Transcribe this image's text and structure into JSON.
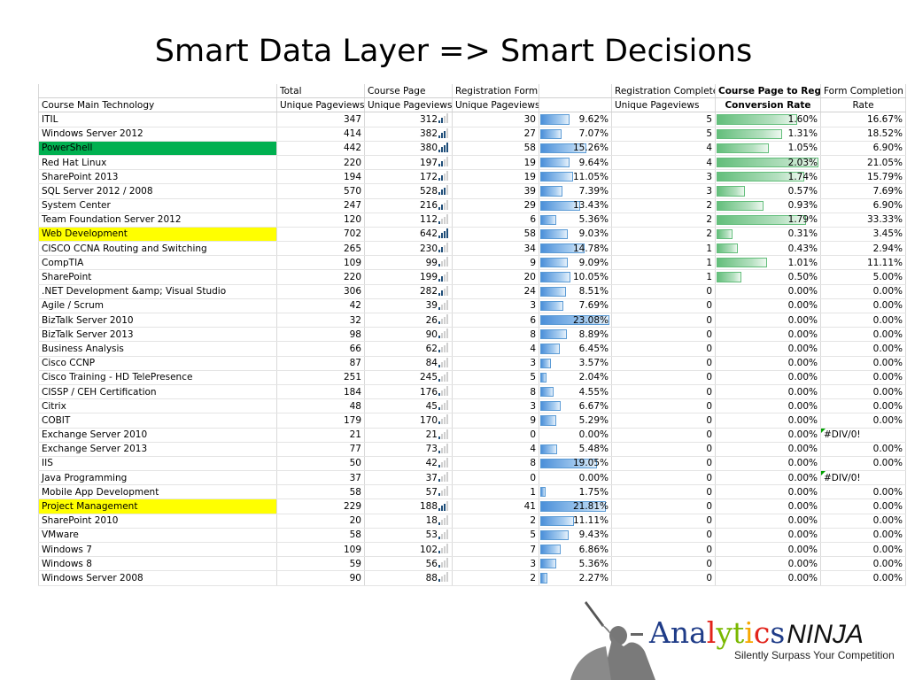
{
  "slide": {
    "title": "Smart Data Layer => Smart Decisions"
  },
  "table": {
    "header_row1": [
      "",
      "Total",
      "Course Page",
      "Registration Form",
      "",
      "Registration Complete",
      "Course Page to Reg",
      "Form Completion"
    ],
    "header_row2": [
      "Course Main Technology",
      "Unique Pageviews",
      "Unique Pageviews",
      "Unique Pageviews",
      "",
      "Unique Pageviews",
      "Conversion Rate",
      "Rate"
    ],
    "rows": [
      {
        "tech": "ITIL",
        "total": "347",
        "course": "312",
        "sig": 2,
        "reg": "30",
        "pct": "9.62%",
        "pv": 9.62,
        "complete": "5",
        "conv": "1.60%",
        "cv": 1.6,
        "form": "16.67%"
      },
      {
        "tech": "Windows Server 2012",
        "total": "414",
        "course": "382",
        "sig": 3,
        "reg": "27",
        "pct": "7.07%",
        "pv": 7.07,
        "complete": "5",
        "conv": "1.31%",
        "cv": 1.31,
        "form": "18.52%"
      },
      {
        "tech": "PowerShell",
        "total": "442",
        "course": "380",
        "sig": 4,
        "reg": "58",
        "pct": "15.26%",
        "pv": 15.26,
        "complete": "4",
        "conv": "1.05%",
        "cv": 1.05,
        "form": "6.90%",
        "hl": "green"
      },
      {
        "tech": "Red Hat Linux",
        "total": "220",
        "course": "197",
        "sig": 2,
        "reg": "19",
        "pct": "9.64%",
        "pv": 9.64,
        "complete": "4",
        "conv": "2.03%",
        "cv": 2.03,
        "form": "21.05%"
      },
      {
        "tech": "SharePoint 2013",
        "total": "194",
        "course": "172",
        "sig": 2,
        "reg": "19",
        "pct": "11.05%",
        "pv": 11.05,
        "complete": "3",
        "conv": "1.74%",
        "cv": 1.74,
        "form": "15.79%"
      },
      {
        "tech": "SQL Server 2012 / 2008",
        "total": "570",
        "course": "528",
        "sig": 3,
        "reg": "39",
        "pct": "7.39%",
        "pv": 7.39,
        "complete": "3",
        "conv": "0.57%",
        "cv": 0.57,
        "form": "7.69%"
      },
      {
        "tech": "System Center",
        "total": "247",
        "course": "216",
        "sig": 2,
        "reg": "29",
        "pct": "13.43%",
        "pv": 13.43,
        "complete": "2",
        "conv": "0.93%",
        "cv": 0.93,
        "form": "6.90%"
      },
      {
        "tech": "Team Foundation Server 2012",
        "total": "120",
        "course": "112",
        "sig": 1,
        "reg": "6",
        "pct": "5.36%",
        "pv": 5.36,
        "complete": "2",
        "conv": "1.79%",
        "cv": 1.79,
        "form": "33.33%"
      },
      {
        "tech": "Web Development",
        "total": "702",
        "course": "642",
        "sig": 4,
        "reg": "58",
        "pct": "9.03%",
        "pv": 9.03,
        "complete": "2",
        "conv": "0.31%",
        "cv": 0.31,
        "form": "3.45%",
        "hl": "yellow"
      },
      {
        "tech": "CISCO CCNA Routing and Switching",
        "total": "265",
        "course": "230",
        "sig": 2,
        "reg": "34",
        "pct": "14.78%",
        "pv": 14.78,
        "complete": "1",
        "conv": "0.43%",
        "cv": 0.43,
        "form": "2.94%"
      },
      {
        "tech": "CompTIA",
        "total": "109",
        "course": "99",
        "sig": 1,
        "reg": "9",
        "pct": "9.09%",
        "pv": 9.09,
        "complete": "1",
        "conv": "1.01%",
        "cv": 1.01,
        "form": "11.11%"
      },
      {
        "tech": "SharePoint",
        "total": "220",
        "course": "199",
        "sig": 2,
        "reg": "20",
        "pct": "10.05%",
        "pv": 10.05,
        "complete": "1",
        "conv": "0.50%",
        "cv": 0.5,
        "form": "5.00%"
      },
      {
        "tech": ".NET Development &amp; Visual Studio",
        "total": "306",
        "course": "282",
        "sig": 2,
        "reg": "24",
        "pct": "8.51%",
        "pv": 8.51,
        "complete": "0",
        "conv": "0.00%",
        "cv": 0,
        "form": "0.00%"
      },
      {
        "tech": "Agile / Scrum",
        "total": "42",
        "course": "39",
        "sig": 1,
        "reg": "3",
        "pct": "7.69%",
        "pv": 7.69,
        "complete": "0",
        "conv": "0.00%",
        "cv": 0,
        "form": "0.00%"
      },
      {
        "tech": "BizTalk Server 2010",
        "total": "32",
        "course": "26",
        "sig": 1,
        "reg": "6",
        "pct": "23.08%",
        "pv": 23.08,
        "complete": "0",
        "conv": "0.00%",
        "cv": 0,
        "form": "0.00%"
      },
      {
        "tech": "BizTalk Server 2013",
        "total": "98",
        "course": "90",
        "sig": 1,
        "reg": "8",
        "pct": "8.89%",
        "pv": 8.89,
        "complete": "0",
        "conv": "0.00%",
        "cv": 0,
        "form": "0.00%"
      },
      {
        "tech": "Business Analysis",
        "total": "66",
        "course": "62",
        "sig": 1,
        "reg": "4",
        "pct": "6.45%",
        "pv": 6.45,
        "complete": "0",
        "conv": "0.00%",
        "cv": 0,
        "form": "0.00%"
      },
      {
        "tech": "Cisco CCNP",
        "total": "87",
        "course": "84",
        "sig": 1,
        "reg": "3",
        "pct": "3.57%",
        "pv": 3.57,
        "complete": "0",
        "conv": "0.00%",
        "cv": 0,
        "form": "0.00%"
      },
      {
        "tech": "Cisco Training - HD TelePresence",
        "total": "251",
        "course": "245",
        "sig": 1,
        "reg": "5",
        "pct": "2.04%",
        "pv": 2.04,
        "complete": "0",
        "conv": "0.00%",
        "cv": 0,
        "form": "0.00%"
      },
      {
        "tech": "CISSP / CEH Certification",
        "total": "184",
        "course": "176",
        "sig": 1,
        "reg": "8",
        "pct": "4.55%",
        "pv": 4.55,
        "complete": "0",
        "conv": "0.00%",
        "cv": 0,
        "form": "0.00%"
      },
      {
        "tech": "Citrix",
        "total": "48",
        "course": "45",
        "sig": 1,
        "reg": "3",
        "pct": "6.67%",
        "pv": 6.67,
        "complete": "0",
        "conv": "0.00%",
        "cv": 0,
        "form": "0.00%"
      },
      {
        "tech": "COBIT",
        "total": "179",
        "course": "170",
        "sig": 1,
        "reg": "9",
        "pct": "5.29%",
        "pv": 5.29,
        "complete": "0",
        "conv": "0.00%",
        "cv": 0,
        "form": "0.00%"
      },
      {
        "tech": "Exchange Server 2010",
        "total": "21",
        "course": "21",
        "sig": 1,
        "reg": "0",
        "pct": "0.00%",
        "pv": 0,
        "complete": "0",
        "conv": "0.00%",
        "cv": 0,
        "form": "#DIV/0!",
        "err": true
      },
      {
        "tech": "Exchange Server 2013",
        "total": "77",
        "course": "73",
        "sig": 1,
        "reg": "4",
        "pct": "5.48%",
        "pv": 5.48,
        "complete": "0",
        "conv": "0.00%",
        "cv": 0,
        "form": "0.00%"
      },
      {
        "tech": "IIS",
        "total": "50",
        "course": "42",
        "sig": 1,
        "reg": "8",
        "pct": "19.05%",
        "pv": 19.05,
        "complete": "0",
        "conv": "0.00%",
        "cv": 0,
        "form": "0.00%"
      },
      {
        "tech": "Java Programming",
        "total": "37",
        "course": "37",
        "sig": 1,
        "reg": "0",
        "pct": "0.00%",
        "pv": 0,
        "complete": "0",
        "conv": "0.00%",
        "cv": 0,
        "form": "#DIV/0!",
        "err": true
      },
      {
        "tech": "Mobile App Development",
        "total": "58",
        "course": "57",
        "sig": 1,
        "reg": "1",
        "pct": "1.75%",
        "pv": 1.75,
        "complete": "0",
        "conv": "0.00%",
        "cv": 0,
        "form": "0.00%"
      },
      {
        "tech": "Project Management",
        "total": "229",
        "course": "188",
        "sig": 3,
        "reg": "41",
        "pct": "21.81%",
        "pv": 21.81,
        "complete": "0",
        "conv": "0.00%",
        "cv": 0,
        "form": "0.00%",
        "hl": "yellow"
      },
      {
        "tech": "SharePoint 2010",
        "total": "20",
        "course": "18",
        "sig": 1,
        "reg": "2",
        "pct": "11.11%",
        "pv": 11.11,
        "complete": "0",
        "conv": "0.00%",
        "cv": 0,
        "form": "0.00%"
      },
      {
        "tech": "VMware",
        "total": "58",
        "course": "53",
        "sig": 1,
        "reg": "5",
        "pct": "9.43%",
        "pv": 9.43,
        "complete": "0",
        "conv": "0.00%",
        "cv": 0,
        "form": "0.00%"
      },
      {
        "tech": "Windows 7",
        "total": "109",
        "course": "102",
        "sig": 1,
        "reg": "7",
        "pct": "6.86%",
        "pv": 6.86,
        "complete": "0",
        "conv": "0.00%",
        "cv": 0,
        "form": "0.00%"
      },
      {
        "tech": "Windows 8",
        "total": "59",
        "course": "56",
        "sig": 1,
        "reg": "3",
        "pct": "5.36%",
        "pv": 5.36,
        "complete": "0",
        "conv": "0.00%",
        "cv": 0,
        "form": "0.00%"
      },
      {
        "tech": "Windows Server 2008",
        "total": "90",
        "course": "88",
        "sig": 1,
        "reg": "2",
        "pct": "2.27%",
        "pv": 2.27,
        "complete": "0",
        "conv": "0.00%",
        "cv": 0,
        "form": "0.00%"
      }
    ]
  },
  "colors": {
    "highlight_green": "#00b050",
    "highlight_yellow": "#ffff00",
    "databar_blue": "#4a8fd9",
    "databar_green": "#63be7b",
    "signal_on": "#1f4e79"
  },
  "logo": {
    "letters": [
      {
        "ch": "A",
        "color": "#1f3c88"
      },
      {
        "ch": "n",
        "color": "#1f3c88"
      },
      {
        "ch": "a",
        "color": "#1f3c88"
      },
      {
        "ch": "l",
        "color": "#e2231a"
      },
      {
        "ch": "y",
        "color": "#7ab800"
      },
      {
        "ch": "t",
        "color": "#7ab800"
      },
      {
        "ch": "i",
        "color": "#f7a800"
      },
      {
        "ch": "c",
        "color": "#e2231a"
      },
      {
        "ch": "s",
        "color": "#1f3c88"
      }
    ],
    "ninja": "NINJA",
    "tagline": "Silently Surpass Your Competition",
    "icon": "ninja-silhouette-icon"
  }
}
